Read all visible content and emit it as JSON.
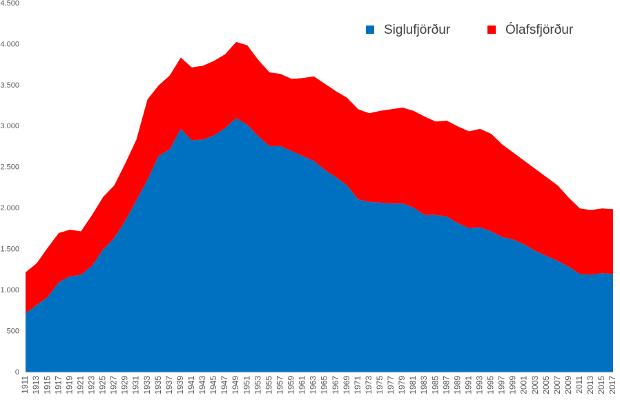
{
  "chart_data": {
    "type": "stacked-area",
    "categories": [
      "1911",
      "1913",
      "1915",
      "1917",
      "1919",
      "1921",
      "1923",
      "1925",
      "1927",
      "1929",
      "1931",
      "1933",
      "1935",
      "1937",
      "1939",
      "1941",
      "1943",
      "1945",
      "1947",
      "1949",
      "1951",
      "1953",
      "1955",
      "1957",
      "1959",
      "1961",
      "1963",
      "1965",
      "1967",
      "1969",
      "1971",
      "1973",
      "1975",
      "1977",
      "1979",
      "1981",
      "1983",
      "1985",
      "1987",
      "1989",
      "1991",
      "1993",
      "1995",
      "1997",
      "1999",
      "2001",
      "2003",
      "2005",
      "2007",
      "2009",
      "2011",
      "2013",
      "2015",
      "2017"
    ],
    "series": [
      {
        "name": "Siglufjörður",
        "color": "#0070c0",
        "values": [
          720,
          820,
          920,
          1100,
          1170,
          1190,
          1300,
          1500,
          1640,
          1850,
          2100,
          2350,
          2640,
          2720,
          2970,
          2830,
          2840,
          2890,
          2980,
          3100,
          3020,
          2880,
          2760,
          2760,
          2700,
          2640,
          2580,
          2470,
          2380,
          2280,
          2110,
          2080,
          2070,
          2060,
          2060,
          2010,
          1920,
          1920,
          1900,
          1820,
          1760,
          1770,
          1720,
          1650,
          1620,
          1560,
          1480,
          1420,
          1360,
          1290,
          1200,
          1190,
          1210,
          1200
        ]
      },
      {
        "name": "Ólafsfjörður",
        "color": "#ff0000",
        "values": [
          500,
          510,
          600,
          600,
          570,
          530,
          620,
          640,
          640,
          700,
          740,
          980,
          860,
          900,
          870,
          890,
          900,
          910,
          900,
          930,
          970,
          930,
          900,
          880,
          880,
          950,
          1030,
          1050,
          1050,
          1070,
          1100,
          1080,
          1120,
          1150,
          1170,
          1180,
          1200,
          1140,
          1170,
          1180,
          1180,
          1200,
          1190,
          1130,
          1060,
          1020,
          1000,
          960,
          920,
          840,
          800,
          790,
          790,
          790
        ]
      }
    ],
    "ylim": [
      0,
      4500
    ],
    "yticks": [
      0,
      500,
      {
        "value": 1000,
        "label": "1.000"
      },
      {
        "value": 1500,
        "label": "1.500"
      },
      {
        "value": 2000,
        "label": "2.000"
      },
      {
        "value": 2500,
        "label": "2.500"
      },
      {
        "value": 3000,
        "label": "3.000"
      },
      {
        "value": 3500,
        "label": "3.500"
      },
      {
        "value": 4000,
        "label": "4.000"
      },
      {
        "value": 4500,
        "label": "4.500"
      }
    ],
    "grid": false,
    "legend": "top-right"
  }
}
